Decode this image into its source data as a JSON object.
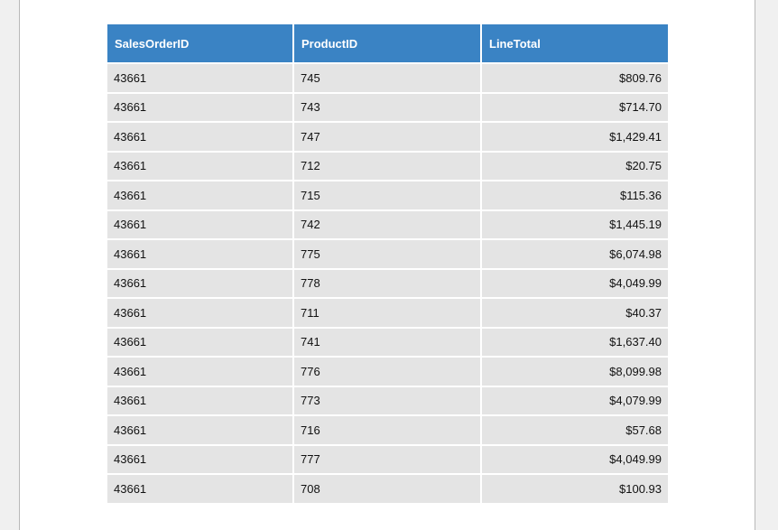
{
  "table": {
    "columns": [
      "SalesOrderID",
      "ProductID",
      "LineTotal"
    ],
    "rows": [
      [
        "43661",
        "745",
        "$809.76"
      ],
      [
        "43661",
        "743",
        "$714.70"
      ],
      [
        "43661",
        "747",
        "$1,429.41"
      ],
      [
        "43661",
        "712",
        "$20.75"
      ],
      [
        "43661",
        "715",
        "$115.36"
      ],
      [
        "43661",
        "742",
        "$1,445.19"
      ],
      [
        "43661",
        "775",
        "$6,074.98"
      ],
      [
        "43661",
        "778",
        "$4,049.99"
      ],
      [
        "43661",
        "711",
        "$40.37"
      ],
      [
        "43661",
        "741",
        "$1,637.40"
      ],
      [
        "43661",
        "776",
        "$8,099.98"
      ],
      [
        "43661",
        "773",
        "$4,079.99"
      ],
      [
        "43661",
        "716",
        "$57.68"
      ],
      [
        "43661",
        "777",
        "$4,049.99"
      ],
      [
        "43661",
        "708",
        "$100.93"
      ]
    ]
  },
  "colors": {
    "header_bg": "#3a83c4",
    "row_bg": "#e4e4e4",
    "page_bg": "#ffffff",
    "outer_bg": "#f0f0f0"
  }
}
